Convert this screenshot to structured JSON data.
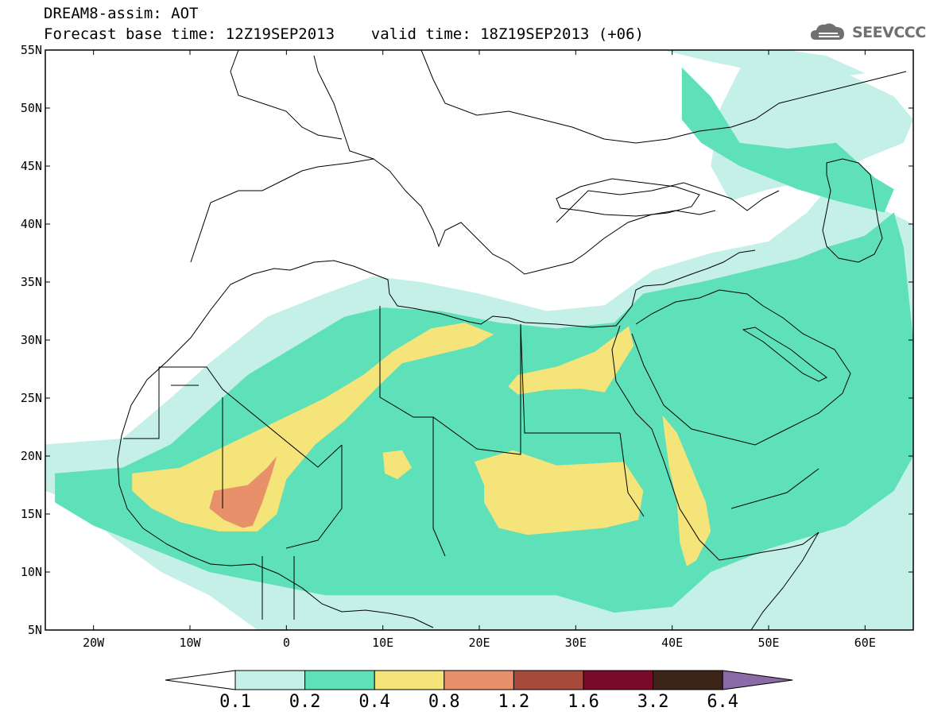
{
  "header": {
    "title_line1": "DREAM8-assim: AOT",
    "title_line2": "Forecast base time: 12Z19SEP2013    valid time: 18Z19SEP2013 (+06)",
    "logo_text": "SEEVCCC",
    "logo_icon": "cloud-icon"
  },
  "map": {
    "projection": "lat-lon",
    "lon_range": [
      -25,
      65
    ],
    "lat_range": [
      5,
      55
    ],
    "lat_ticks": [
      {
        "value": 55,
        "label": "55N"
      },
      {
        "value": 50,
        "label": "50N"
      },
      {
        "value": 45,
        "label": "45N"
      },
      {
        "value": 40,
        "label": "40N"
      },
      {
        "value": 35,
        "label": "35N"
      },
      {
        "value": 30,
        "label": "30N"
      },
      {
        "value": 25,
        "label": "25N"
      },
      {
        "value": 20,
        "label": "20N"
      },
      {
        "value": 15,
        "label": "15N"
      },
      {
        "value": 10,
        "label": "10N"
      },
      {
        "value": 5,
        "label": "5N"
      }
    ],
    "lon_ticks": [
      {
        "value": -20,
        "label": "20W"
      },
      {
        "value": -10,
        "label": "10W"
      },
      {
        "value": 0,
        "label": "0"
      },
      {
        "value": 10,
        "label": "10E"
      },
      {
        "value": 20,
        "label": "20E"
      },
      {
        "value": 30,
        "label": "30E"
      },
      {
        "value": 40,
        "label": "40E"
      },
      {
        "value": 50,
        "label": "50E"
      },
      {
        "value": 60,
        "label": "60E"
      }
    ]
  },
  "colorbar": {
    "under_color": "#ffffff",
    "over_color": "#8b6aa8",
    "bins": [
      {
        "color": "#c4f0e8"
      },
      {
        "color": "#5ee0b8"
      },
      {
        "color": "#f5e47a"
      },
      {
        "color": "#e8906a"
      },
      {
        "color": "#a84a3c"
      },
      {
        "color": "#7a0a2a"
      },
      {
        "color": "#3c2418"
      }
    ],
    "labels": [
      "0.1",
      "0.2",
      "0.4",
      "0.8",
      "1.2",
      "1.6",
      "3.2",
      "6.4"
    ]
  },
  "aot_fields": [
    {
      "level": "0.1-0.2",
      "color": "#c4f0e8",
      "lonlat": [
        [
          -25,
          21
        ],
        [
          -17,
          21.5
        ],
        [
          -12,
          25
        ],
        [
          -8,
          28
        ],
        [
          -2,
          32
        ],
        [
          4,
          34
        ],
        [
          9,
          35.5
        ],
        [
          14,
          35
        ],
        [
          20,
          34
        ],
        [
          27,
          32.5
        ],
        [
          33,
          33
        ],
        [
          38,
          36
        ],
        [
          44,
          37.5
        ],
        [
          50,
          38.5
        ],
        [
          54,
          41
        ],
        [
          58,
          45
        ],
        [
          64,
          47
        ],
        [
          65,
          49
        ],
        [
          63,
          51
        ],
        [
          58,
          53
        ],
        [
          52,
          55
        ],
        [
          48,
          55
        ],
        [
          45,
          50
        ],
        [
          44,
          45
        ],
        [
          46,
          42
        ],
        [
          50,
          43
        ],
        [
          56,
          44
        ],
        [
          60,
          42
        ],
        [
          65,
          40
        ],
        [
          65,
          5
        ],
        [
          40,
          5
        ],
        [
          20,
          5
        ],
        [
          5,
          5
        ],
        [
          -3,
          5
        ],
        [
          -8,
          8
        ],
        [
          -13,
          10
        ],
        [
          -18,
          13
        ],
        [
          -22,
          16
        ],
        [
          -25,
          17
        ]
      ]
    },
    {
      "level": "0.1-0.2",
      "color": "#c4f0e8",
      "lonlat": [
        [
          39,
          55
        ],
        [
          45,
          55
        ],
        [
          52,
          55
        ],
        [
          56,
          54.5
        ],
        [
          60,
          53
        ],
        [
          56,
          52.5
        ],
        [
          50,
          53
        ],
        [
          44,
          54
        ]
      ]
    },
    {
      "level": "0.2-0.4",
      "color": "#5ee0b8",
      "lonlat": [
        [
          -24,
          18.5
        ],
        [
          -17,
          19
        ],
        [
          -12,
          21
        ],
        [
          -8,
          24
        ],
        [
          -4,
          27
        ],
        [
          2,
          30
        ],
        [
          6,
          32
        ],
        [
          10,
          32.8
        ],
        [
          16,
          32.5
        ],
        [
          22,
          31.5
        ],
        [
          28,
          31
        ],
        [
          34,
          31.5
        ],
        [
          37,
          34
        ],
        [
          43,
          35
        ],
        [
          48,
          36
        ],
        [
          53,
          37
        ],
        [
          56,
          38
        ],
        [
          60,
          39
        ],
        [
          63,
          41
        ],
        [
          64,
          38
        ],
        [
          65,
          30
        ],
        [
          65,
          20
        ],
        [
          63,
          17
        ],
        [
          58,
          14
        ],
        [
          50,
          12
        ],
        [
          44,
          10
        ],
        [
          40,
          7
        ],
        [
          34,
          6.5
        ],
        [
          28,
          8
        ],
        [
          22,
          8
        ],
        [
          16,
          8
        ],
        [
          10,
          8
        ],
        [
          4,
          8
        ],
        [
          -2,
          9
        ],
        [
          -8,
          10
        ],
        [
          -14,
          12
        ],
        [
          -20,
          14
        ],
        [
          -24,
          16
        ]
      ]
    },
    {
      "level": "0.2-0.4",
      "color": "#5ee0b8",
      "lonlat": [
        [
          41,
          53.5
        ],
        [
          44,
          51
        ],
        [
          47,
          47
        ],
        [
          52,
          46.5
        ],
        [
          57,
          47
        ],
        [
          61,
          44
        ],
        [
          63,
          43
        ],
        [
          62,
          41
        ],
        [
          57,
          42
        ],
        [
          53,
          43
        ],
        [
          50,
          44
        ],
        [
          47,
          45
        ],
        [
          43,
          47
        ],
        [
          41,
          49
        ]
      ]
    },
    {
      "level": "0.4-0.8",
      "color": "#f5e47a",
      "lonlat": [
        [
          -16,
          18.5
        ],
        [
          -11,
          19
        ],
        [
          -6,
          21
        ],
        [
          -1,
          23
        ],
        [
          4,
          25
        ],
        [
          8,
          27
        ],
        [
          11,
          29
        ],
        [
          15,
          31
        ],
        [
          18.5,
          31.5
        ],
        [
          21.5,
          30.5
        ],
        [
          19.5,
          29.5
        ],
        [
          15.5,
          28.7
        ],
        [
          12,
          28
        ],
        [
          9.5,
          26
        ],
        [
          6,
          23
        ],
        [
          3,
          21
        ],
        [
          0,
          18
        ],
        [
          -1,
          15
        ],
        [
          -3,
          13.5
        ],
        [
          -7,
          13.5
        ],
        [
          -11,
          14.3
        ],
        [
          -14,
          15.5
        ],
        [
          -16,
          17
        ]
      ]
    },
    {
      "level": "0.4-0.8",
      "color": "#f5e47a",
      "lonlat": [
        [
          24,
          27
        ],
        [
          28,
          27.7
        ],
        [
          32,
          29
        ],
        [
          35.5,
          31.2
        ],
        [
          36,
          29.5
        ],
        [
          34.5,
          27.5
        ],
        [
          33,
          25.5
        ],
        [
          30.5,
          25.8
        ],
        [
          27,
          25.7
        ],
        [
          24,
          25.3
        ],
        [
          23,
          26
        ]
      ]
    },
    {
      "level": "0.4-0.8",
      "color": "#f5e47a",
      "lonlat": [
        [
          19.5,
          19.5
        ],
        [
          23.5,
          20.5
        ],
        [
          28,
          19.2
        ],
        [
          35,
          19.5
        ],
        [
          37,
          17
        ],
        [
          36.5,
          14.5
        ],
        [
          33,
          13.8
        ],
        [
          29,
          13.5
        ],
        [
          25,
          13.2
        ],
        [
          22,
          13.8
        ],
        [
          20.5,
          16
        ],
        [
          20.5,
          17.5
        ]
      ]
    },
    {
      "level": "0.4-0.8",
      "color": "#f5e47a",
      "lonlat": [
        [
          39,
          23.5
        ],
        [
          40.5,
          22
        ],
        [
          42,
          19
        ],
        [
          43.5,
          16
        ],
        [
          44,
          13.5
        ],
        [
          42.5,
          11
        ],
        [
          41.5,
          10.5
        ],
        [
          40.8,
          12.5
        ],
        [
          40.5,
          16
        ],
        [
          39.7,
          19
        ],
        [
          39.2,
          22
        ]
      ]
    },
    {
      "level": "0.4-0.8",
      "color": "#f5e47a",
      "lonlat": [
        [
          10,
          20.3
        ],
        [
          12,
          20.5
        ],
        [
          13,
          19
        ],
        [
          11.5,
          18
        ],
        [
          10.2,
          18.5
        ]
      ]
    },
    {
      "level": "0.8-1.2",
      "color": "#e8906a",
      "lonlat": [
        [
          -7.5,
          17
        ],
        [
          -4,
          17.5
        ],
        [
          -2,
          19
        ],
        [
          -1,
          20
        ],
        [
          -1.5,
          18.5
        ],
        [
          -2.5,
          16
        ],
        [
          -3.5,
          14
        ],
        [
          -4.5,
          13.8
        ],
        [
          -6.5,
          14.5
        ],
        [
          -8,
          15.5
        ]
      ]
    }
  ]
}
